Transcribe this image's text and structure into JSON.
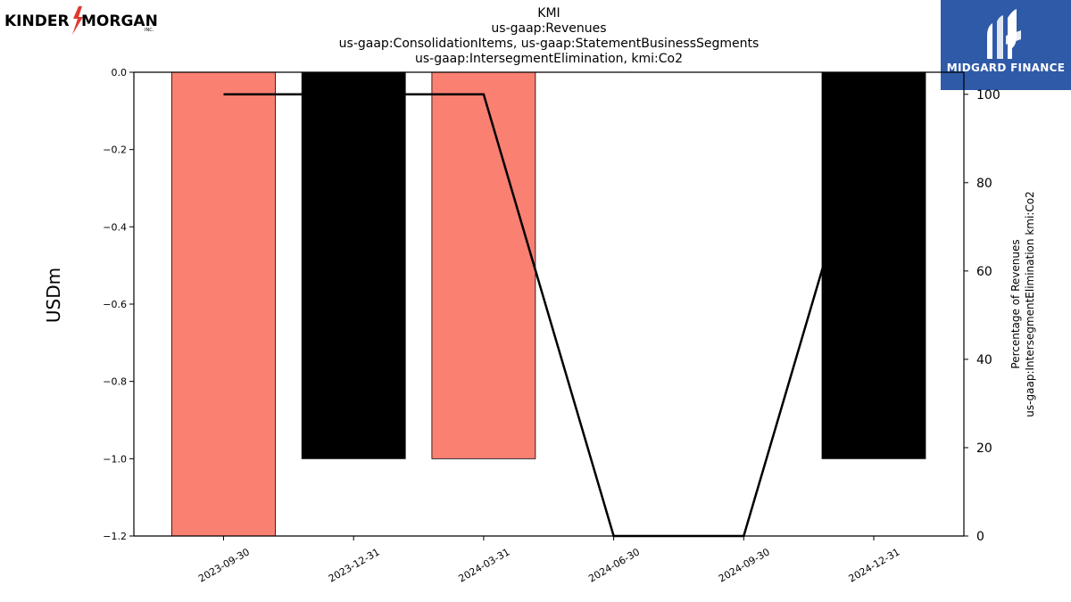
{
  "logos": {
    "left": {
      "text_a": "KINDER",
      "text_b": "MORGAN",
      "suffix": "INC."
    },
    "right": {
      "text": "MIDGARD FINANCE"
    }
  },
  "colors": {
    "salmon": "#fa8072",
    "black": "#000000",
    "brand_blue": "#2f5aa8"
  },
  "chart_data": {
    "type": "bar",
    "title": [
      "KMI",
      "us-gaap:Revenues",
      "us-gaap:ConsolidationItems, us-gaap:StatementBusinessSegments",
      "us-gaap:IntersegmentElimination, kmi:Co2"
    ],
    "categories": [
      "2023-09-30",
      "2023-12-31",
      "2024-03-31",
      "2024-06-30",
      "2024-09-30",
      "2024-12-31"
    ],
    "series": [
      {
        "type": "bar",
        "axis": "left",
        "values": [
          -1.2,
          -1.0,
          -1.0,
          0,
          0,
          -1.0
        ],
        "colors": [
          "#fa8072",
          "#000000",
          "#fa8072",
          null,
          null,
          "#000000"
        ]
      },
      {
        "type": "line",
        "axis": "right",
        "values": [
          100,
          100,
          100,
          0,
          0,
          100
        ],
        "color": "#000000"
      }
    ],
    "ylabel": "USDm",
    "ylim": [
      -1.2,
      0.0
    ],
    "yticks": [
      "0.0",
      "−0.2",
      "−0.4",
      "−0.6",
      "−0.8",
      "−1.0",
      "−1.2"
    ],
    "ylabel_right": [
      "Percentage of Revenues",
      "us-gaap:IntersegmentElimination kmi:Co2"
    ],
    "ylim_right": [
      0,
      105
    ],
    "yticks_right": [
      "0",
      "20",
      "40",
      "60",
      "80",
      "100"
    ],
    "grid": false
  }
}
